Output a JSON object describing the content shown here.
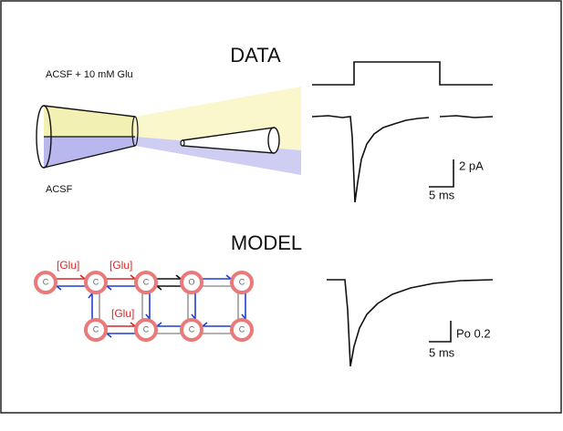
{
  "data_panel": {
    "title": "DATA",
    "solution_top": "ACSF + 10 mM Glu",
    "solution_bottom": "ACSF",
    "scale_y": "2 pA",
    "scale_x": "5 ms"
  },
  "model_panel": {
    "title": "MODEL",
    "glu_labels": [
      "[Glu]",
      "[Glu]",
      "[Glu]"
    ],
    "scale_y": "Po 0.2",
    "scale_x": "5 ms",
    "nodes": [
      "C",
      "C",
      "C",
      "O",
      "C",
      "C",
      "C",
      "C",
      "C"
    ]
  }
}
